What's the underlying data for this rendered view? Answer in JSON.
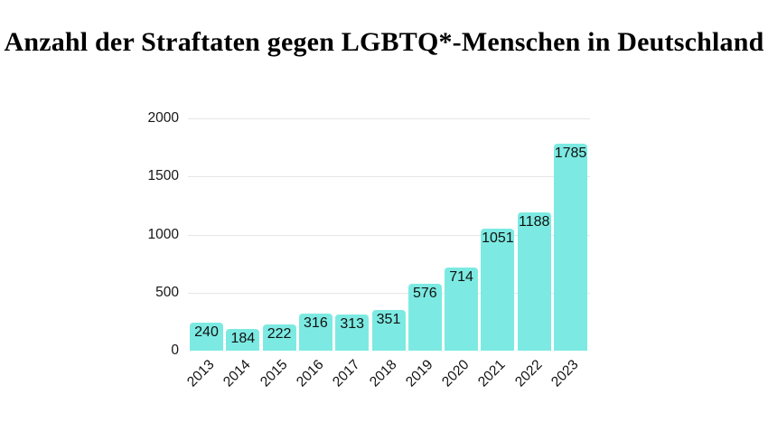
{
  "chart_data": {
    "type": "bar",
    "title": "Anzahl der Straftaten gegen LGBTQ*-Menschen in Deutschland",
    "categories": [
      "2013",
      "2014",
      "2015",
      "2016",
      "2017",
      "2018",
      "2019",
      "2020",
      "2021",
      "2022",
      "2023"
    ],
    "values": [
      240,
      184,
      222,
      316,
      313,
      351,
      576,
      714,
      1051,
      1188,
      1785
    ],
    "xlabel": "",
    "ylabel": "",
    "ylim": [
      0,
      2000
    ],
    "yticks": [
      0,
      500,
      1000,
      1500,
      2000
    ],
    "grid": "horizontal-only",
    "legend": "none",
    "value_labels": "inside-bar-top",
    "colors": {
      "bar_fill": "#7CEAE2",
      "gridline": "#e6e6e6",
      "tick_text": "#161616",
      "value_text": "#111111",
      "title_text": "#000000",
      "background": "#ffffff"
    }
  }
}
